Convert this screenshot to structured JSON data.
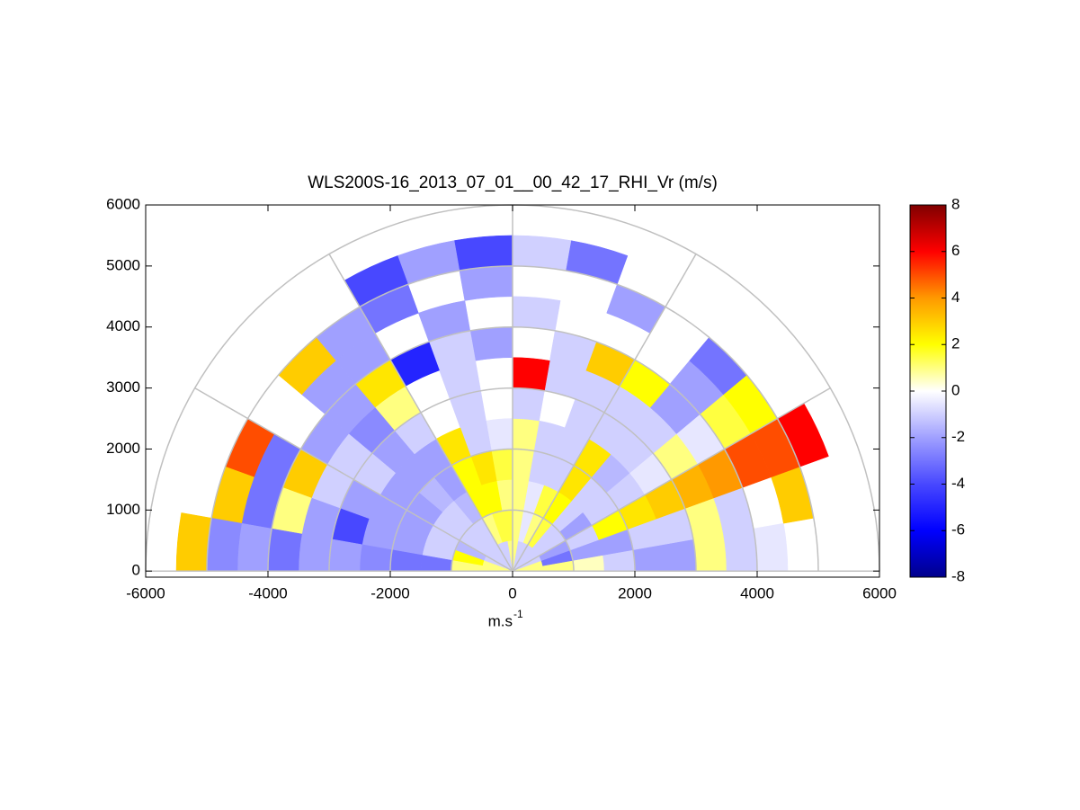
{
  "chart_data": {
    "type": "rhi",
    "title": "WLS200S-16_2013_07_01__00_42_17_RHI_Vr (m/s)",
    "xlabel": "m.s",
    "xlabel_superscript": "-1",
    "xlim": [
      -6000,
      6000
    ],
    "ylim": [
      -100,
      6000
    ],
    "xticks": [
      -6000,
      -4000,
      -2000,
      0,
      2000,
      4000,
      6000
    ],
    "yticks": [
      0,
      1000,
      2000,
      3000,
      4000,
      5000,
      6000
    ],
    "polar_grid": {
      "rings": [
        1000,
        2000,
        3000,
        4000,
        5000,
        6000
      ],
      "spokes": [
        0,
        30,
        60,
        90,
        120,
        150,
        180
      ],
      "color": "#c0c0c0"
    },
    "clim": [
      -8,
      8
    ],
    "cticks": [
      -8,
      -6,
      -4,
      -2,
      0,
      2,
      4,
      6,
      8
    ],
    "colormap": [
      "#00008b",
      "#0000ff",
      "#4848ff",
      "#a0a0ff",
      "#ffffff",
      "#ffff00",
      "#ff9900",
      "#ff0000",
      "#800000"
    ],
    "ranges": [
      250,
      750,
      1250,
      1750,
      2250,
      2750,
      3250,
      3750,
      4250,
      4750,
      5250,
      5750
    ],
    "angles": [
      5,
      15,
      25,
      35,
      45,
      55,
      65,
      75,
      85,
      95,
      105,
      115,
      125,
      135,
      145,
      155,
      165,
      175
    ],
    "values": [
      [
        1,
        1,
        0.5,
        -1,
        -2,
        -2,
        1,
        -1,
        -0.5,
        null,
        null,
        null
      ],
      [
        1,
        -3,
        -2,
        -2,
        -1,
        -1,
        1,
        -1,
        null,
        3,
        null,
        null
      ],
      [
        -1,
        -2,
        -1,
        2,
        2.5,
        3,
        3.5,
        4,
        5,
        5,
        6,
        null
      ],
      [
        -1,
        -1,
        -2,
        -1,
        -1,
        -0.5,
        1,
        -0.5,
        1.5,
        2,
        null,
        null
      ],
      [
        -1,
        -1,
        -1,
        -1,
        -1.5,
        -1,
        -1,
        -2,
        -2,
        -3,
        null,
        null
      ],
      [
        -1,
        1.5,
        2,
        2.5,
        2.5,
        -1,
        -1,
        2,
        null,
        null,
        null,
        null
      ],
      [
        -1,
        1,
        1.5,
        -1,
        -1,
        -1,
        -1,
        3,
        null,
        -2,
        null,
        null
      ],
      [
        -1,
        -0.5,
        -0.5,
        -1,
        -1,
        null,
        -1,
        -1,
        null,
        null,
        -3,
        null
      ],
      [
        1,
        1,
        1,
        1,
        1,
        -1,
        6,
        null,
        -1,
        null,
        -1,
        null
      ],
      [
        1,
        1.5,
        1,
        1.5,
        -0.5,
        null,
        null,
        -2,
        null,
        -2,
        -4,
        null
      ],
      [
        -1,
        1.5,
        2,
        2.5,
        -1,
        -1,
        -1,
        -1,
        -2,
        null,
        -2,
        null
      ],
      [
        -1,
        1,
        2,
        2,
        2.5,
        null,
        null,
        -5,
        null,
        -3,
        -4,
        null
      ],
      [
        -1,
        -1,
        -1.5,
        -2,
        -2,
        -1,
        1,
        2.5,
        -2,
        -2,
        null,
        null
      ],
      [
        -1,
        -1,
        -1,
        -1.5,
        -2,
        -2,
        -2.5,
        -2,
        -2,
        3,
        null,
        null
      ],
      [
        -1,
        -1,
        -1,
        -2,
        -2,
        -1,
        -1,
        -2,
        null,
        null,
        null,
        null
      ],
      [
        -1,
        -1.5,
        -1,
        -2,
        -2,
        -2,
        -1,
        3,
        -3,
        5,
        null,
        null
      ],
      [
        1,
        2,
        -1,
        -2,
        -2,
        -4,
        -2,
        1,
        -3,
        3,
        null,
        null
      ],
      [
        1,
        1,
        -3,
        -3,
        -2.5,
        -2,
        -2,
        -3,
        -2,
        -2.5,
        3,
        null
      ]
    ]
  }
}
